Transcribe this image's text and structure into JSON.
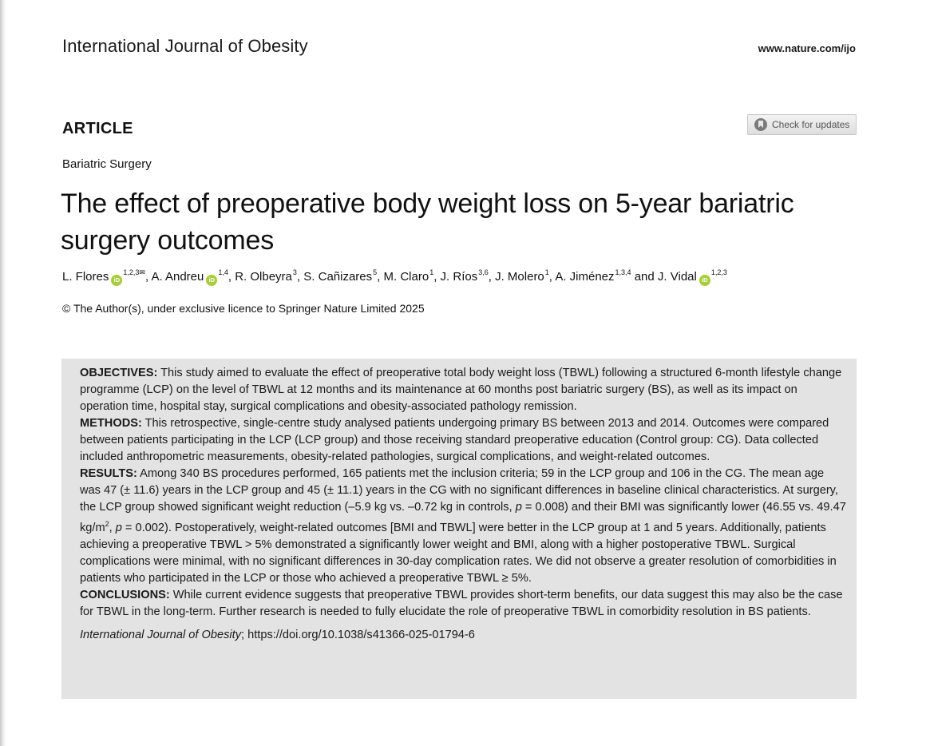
{
  "header": {
    "journal_name": "International Journal of Obesity",
    "journal_url": "www.nature.com/ijo"
  },
  "article_label": "ARTICLE",
  "check_updates_label": "Check for updates",
  "section": "Bariatric Surgery",
  "title": "The effect of preoperative body weight loss on 5-year bariatric surgery outcomes",
  "authors": [
    {
      "name": "L. Flores",
      "orcid": true,
      "aff": "1,2,3",
      "corresponding": true
    },
    {
      "name": "A. Andreu",
      "orcid": true,
      "aff": "1,4"
    },
    {
      "name": "R. Olbeyra",
      "aff": "3"
    },
    {
      "name": "S. Cañizares",
      "aff": "5"
    },
    {
      "name": "M. Claro",
      "aff": "1"
    },
    {
      "name": "J. Ríos",
      "aff": "3,6"
    },
    {
      "name": "J. Molero",
      "aff": "1"
    },
    {
      "name": "A. Jiménez",
      "aff": "1,3,4"
    },
    {
      "name": "J. Vidal",
      "orcid": true,
      "aff": "1,2,3"
    }
  ],
  "authors_and": "and",
  "orcid_glyph": "iD",
  "copyright": "© The Author(s), under exclusive licence to Springer Nature Limited 2025",
  "abstract": {
    "objectives_head": "OBJECTIVES:",
    "objectives": "This study aimed to evaluate the effect of preoperative total body weight loss (TBWL) following a structured 6-month lifestyle change programme (LCP) on the level of TBWL at 12 months and its maintenance at 60 months post bariatric surgery (BS), as well as its impact on operation time, hospital stay, surgical complications and obesity-associated pathology remission.",
    "methods_head": "METHODS:",
    "methods": "This retrospective, single-centre study analysed patients undergoing primary BS between 2013 and 2014. Outcomes were compared between patients participating in the LCP (LCP group) and those receiving standard preoperative education (Control group: CG). Data collected included anthropometric measurements, obesity-related pathologies, surgical complications, and weight-related outcomes.",
    "results_head": "RESULTS:",
    "results_part1": "Among 340 BS procedures performed, 165 patients met the inclusion criteria; 59 in the LCP group and 106 in the CG. The mean age was 47 (± 11.6) years in the LCP group and 45 (± 11.1) years in the CG with no significant differences in baseline clinical characteristics. At surgery, the LCP group showed significant weight reduction (–5.9 kg vs. –0.72 kg in controls, ",
    "p_letter": "p",
    "results_p1": " = 0.008) and their BMI was significantly lower (46.55 vs. 49.47 kg/m",
    "results_sq": "2",
    "results_p2_pre": ", ",
    "results_p2": " = 0.002). Postoperatively, weight-related outcomes [BMI and TBWL] were better in the LCP group at 1 and 5 years. Additionally, patients achieving a preoperative TBWL > 5% demonstrated a significantly lower weight and BMI, along with a higher postoperative TBWL. Surgical complications were minimal, with no significant differences in 30-day complication rates. We did not observe a greater resolution of comorbidities in patients who participated in the LCP or those who achieved a preoperative TBWL ≥ 5%.",
    "conclusions_head": "CONCLUSIONS:",
    "conclusions": "While current evidence suggests that preoperative TBWL provides short-term benefits, our data suggest this may also be the case for TBWL in the long-term. Further research is needed to fully elucidate the role of preoperative TBWL in comorbidity resolution in BS patients.",
    "citation_journal": "International Journal of Obesity",
    "citation_doi": "; https://doi.org/10.1038/s41366-025-01794-6"
  }
}
